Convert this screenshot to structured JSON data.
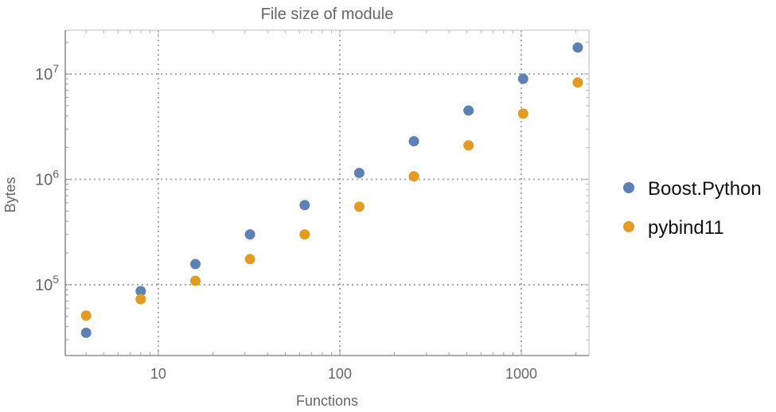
{
  "chart_data": {
    "type": "scatter",
    "title": "File size of module",
    "xlabel": "Functions",
    "ylabel": "Bytes",
    "xscale": "log",
    "yscale": "log",
    "xlim": [
      3.07,
      2360
    ],
    "ylim": [
      21300,
      26000000
    ],
    "grid": true,
    "legend_position": "right",
    "x_ticks": [
      {
        "value": 10,
        "label": "10"
      },
      {
        "value": 100,
        "label": "100"
      },
      {
        "value": 1000,
        "label": "1000"
      }
    ],
    "y_ticks": [
      {
        "value": 100000,
        "base": "10",
        "exp": "5"
      },
      {
        "value": 1000000,
        "base": "10",
        "exp": "6"
      },
      {
        "value": 10000000,
        "base": "10",
        "exp": "7"
      }
    ],
    "x": [
      4,
      8,
      16,
      32,
      64,
      128,
      256,
      512,
      1024,
      2048
    ],
    "series": [
      {
        "name": "Boost.Python",
        "color": "#5e81b5",
        "values": [
          35000,
          87000,
          157000,
          300000,
          570000,
          1150000,
          2300000,
          4500000,
          9000000,
          17800000
        ]
      },
      {
        "name": "pybind11",
        "color": "#e19c24",
        "values": [
          51000,
          73000,
          109000,
          175000,
          300000,
          550000,
          1070000,
          2100000,
          4200000,
          8300000
        ]
      }
    ]
  }
}
